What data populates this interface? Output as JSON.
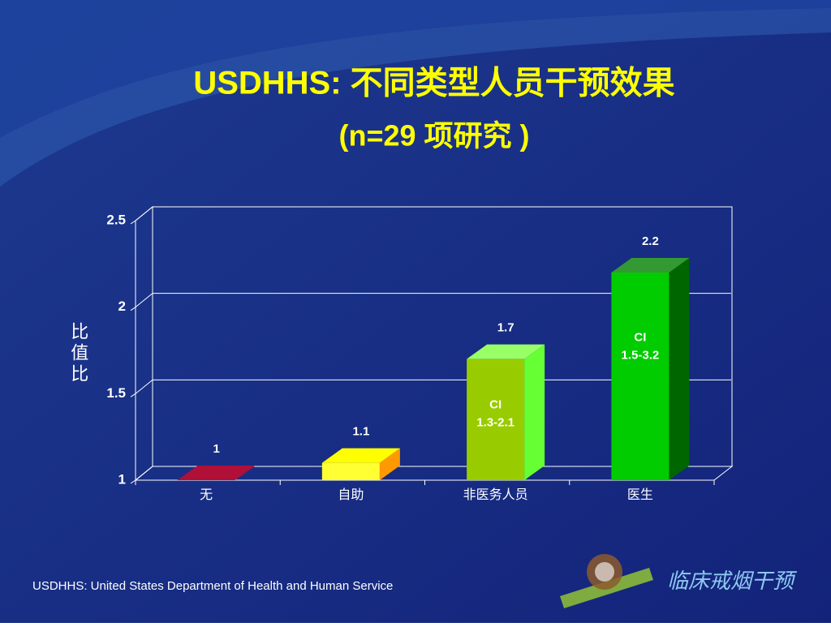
{
  "chart_data": {
    "type": "bar3d",
    "title": "USDHHS: 不同类型人员干预效果",
    "subtitle": "(n=29 项研究 )",
    "y_label": "比值比",
    "categories": [
      "无",
      "自助",
      "非医务人员",
      "医生"
    ],
    "values": [
      1,
      1.1,
      1.7,
      2.2
    ],
    "colors": [
      "#8b0a2a",
      "#ffff33",
      "#99cc00",
      "#00cc00"
    ],
    "top_colors": [
      "#b01038",
      "#ffff00",
      "#99ff66",
      "#339933"
    ],
    "side_colors": [
      "#600018",
      "#ff9900",
      "#66ff33",
      "#006600"
    ],
    "ci_labels": [
      null,
      null,
      [
        "CI",
        "1.3-2.1"
      ],
      [
        "CI",
        "1.5-3.2"
      ]
    ],
    "ylim": [
      1,
      2.5
    ],
    "yticks": [
      1,
      1.5,
      2,
      2.5
    ],
    "grid": true
  },
  "footnote": "USDHHS: United States Department of Health and Human Service",
  "logo_text": "临床戒烟干预"
}
